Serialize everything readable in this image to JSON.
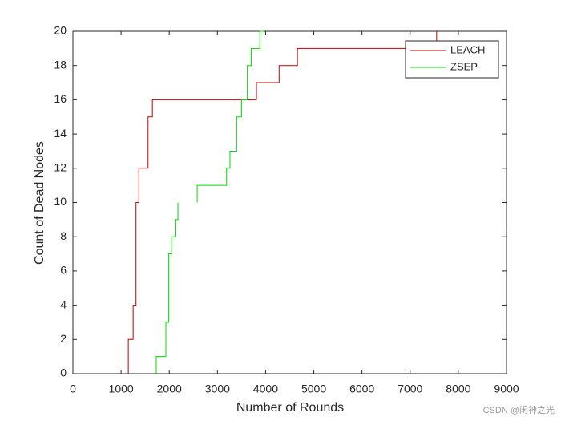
{
  "chart_data": {
    "type": "line",
    "xlabel": "Number of Rounds",
    "ylabel": "Count of Dead Nodes",
    "xlim": [
      0,
      9000
    ],
    "ylim": [
      0,
      20
    ],
    "xticks": [
      0,
      1000,
      2000,
      3000,
      4000,
      5000,
      6000,
      7000,
      8000,
      9000
    ],
    "yticks": [
      0,
      2,
      4,
      6,
      8,
      10,
      12,
      14,
      16,
      18,
      20
    ],
    "legend": "top-right",
    "watermark": "CSDN @闲神之光",
    "series": [
      {
        "name": "LEACH",
        "color": "#c00000",
        "x": [
          1150,
          1150,
          1250,
          1250,
          1310,
          1310,
          1370,
          1370,
          1560,
          1560,
          1650,
          1650,
          3810,
          3810,
          4280,
          4280,
          4660,
          4660,
          7550,
          7550
        ],
        "values": [
          0,
          2,
          2,
          4,
          4,
          10,
          10,
          12,
          12,
          15,
          15,
          16,
          16,
          17,
          17,
          18,
          18,
          19,
          19,
          20
        ]
      },
      {
        "name": "ZSEP",
        "color": "#00dd00",
        "x": [
          1730,
          1730,
          1930,
          1930,
          1990,
          1990,
          2050,
          2050,
          2120,
          2120,
          2180,
          2180,
          null,
          2580,
          2580,
          3190,
          3190,
          3260,
          3260,
          3400,
          3400,
          3500,
          3500,
          3620,
          3620,
          3700,
          3700,
          3880,
          3880,
          3970
        ],
        "values": [
          0,
          1,
          1,
          3,
          3,
          7,
          7,
          8,
          8,
          9,
          9,
          10,
          null,
          10,
          11,
          11,
          12,
          12,
          13,
          13,
          15,
          15,
          16,
          16,
          18,
          18,
          19,
          19,
          20,
          20
        ]
      }
    ]
  }
}
